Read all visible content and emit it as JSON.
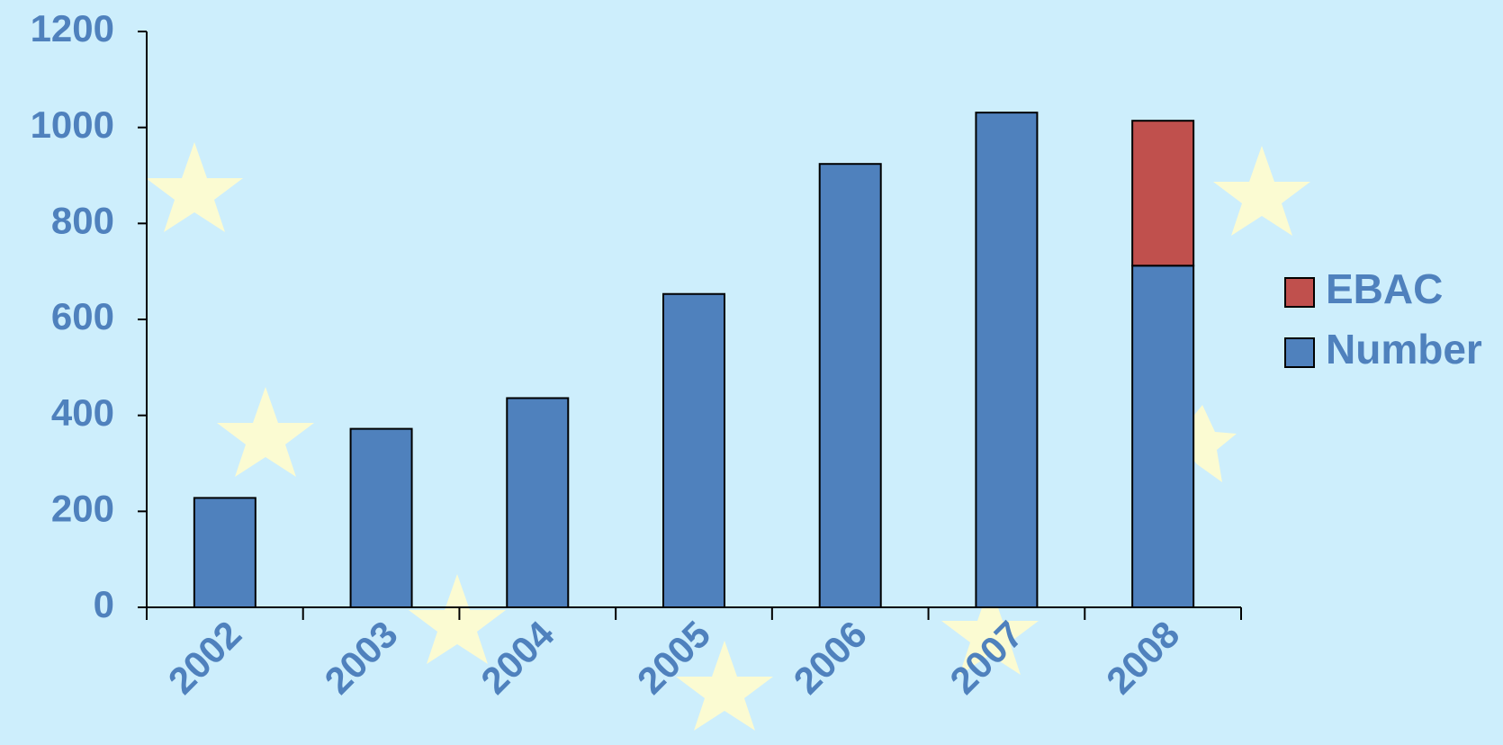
{
  "chart_data": {
    "type": "stacked_bar",
    "categories": [
      "2002",
      "2003",
      "2004",
      "2005",
      "2006",
      "2007",
      "2008"
    ],
    "series": [
      {
        "name": "Number",
        "color": "#4f81bd",
        "values": [
          228,
          372,
          436,
          653,
          924,
          1031,
          712
        ]
      },
      {
        "name": "EBAC",
        "color": "#c0504d",
        "values": [
          null,
          null,
          null,
          null,
          null,
          null,
          302
        ]
      }
    ],
    "ylim": [
      0,
      1200
    ],
    "yticks": [
      0,
      200,
      400,
      600,
      800,
      1000,
      1200
    ],
    "legend": "right"
  }
}
